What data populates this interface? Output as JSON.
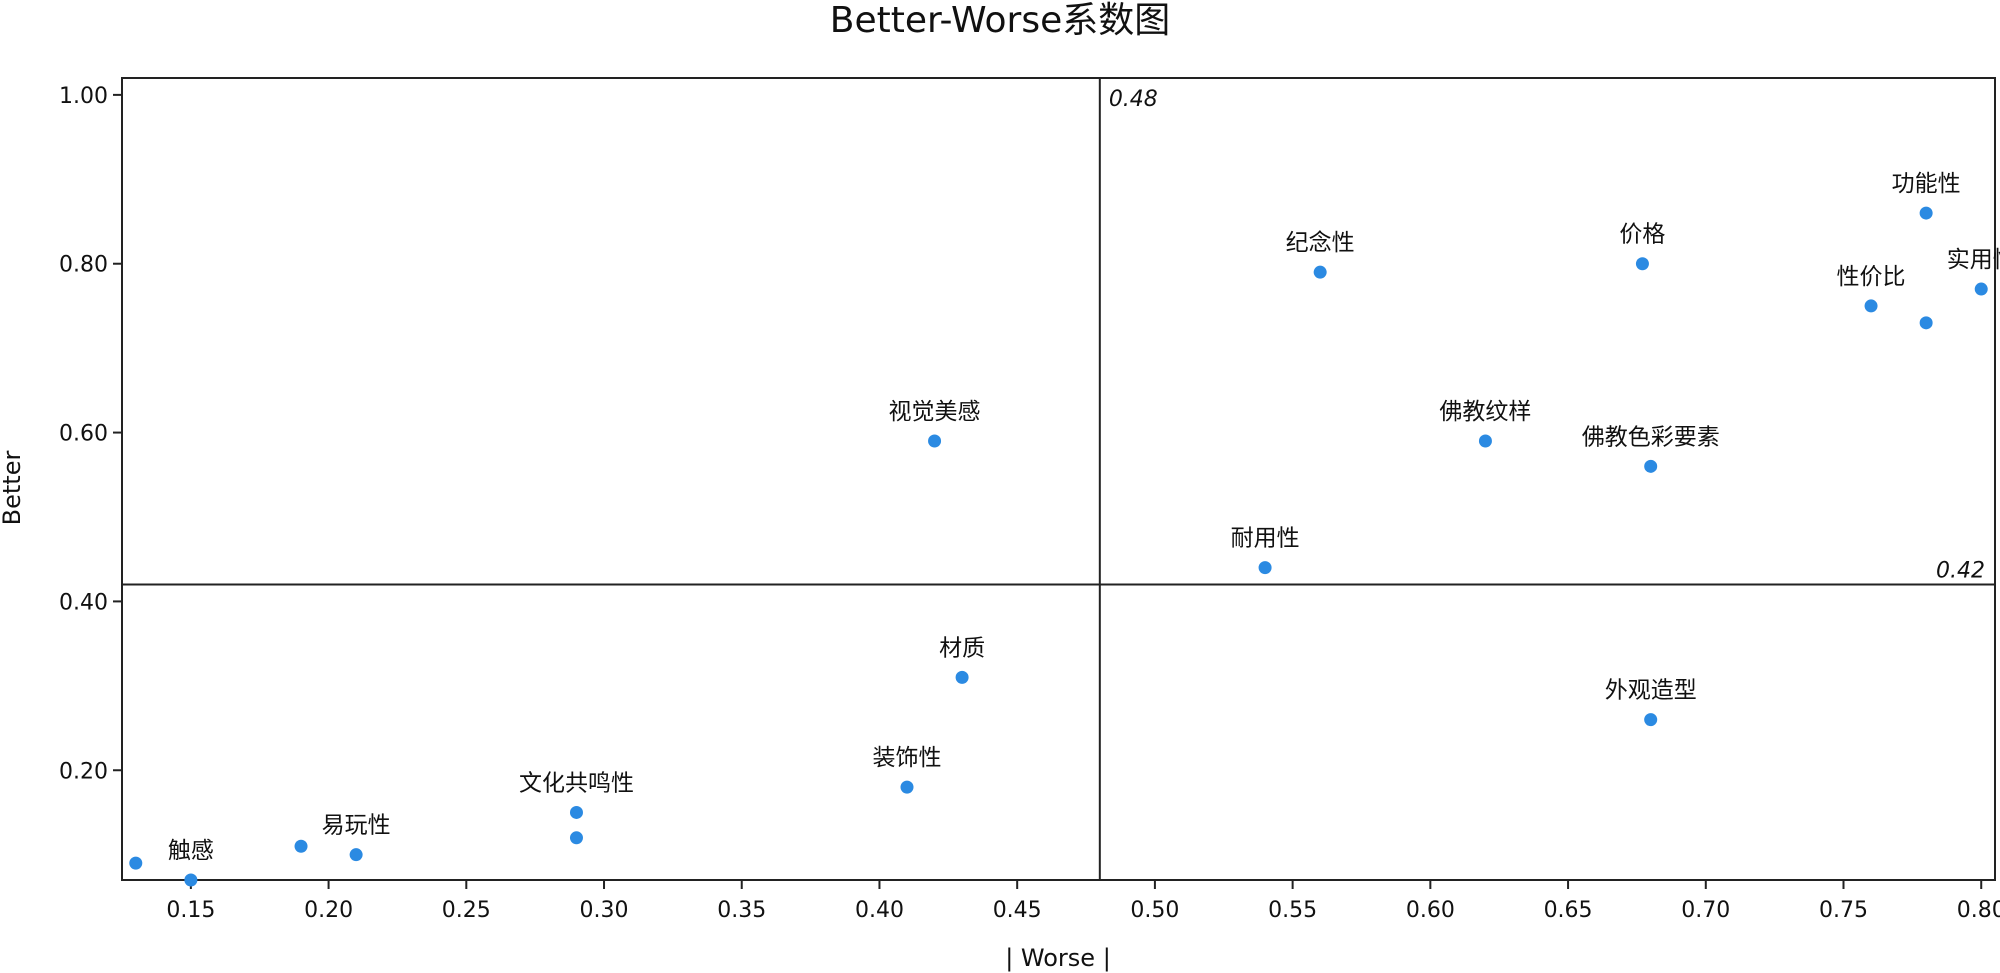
{
  "chart_data": {
    "type": "scatter",
    "title": "Better-Worse系数图",
    "xlabel": "| Worse |",
    "ylabel": "Better",
    "xlim": [
      0.125,
      0.805
    ],
    "ylim": [
      0.07,
      1.02
    ],
    "x_ticks": [
      0.15,
      0.2,
      0.25,
      0.3,
      0.35,
      0.4,
      0.45,
      0.5,
      0.55,
      0.6,
      0.65,
      0.7,
      0.75,
      0.8
    ],
    "x_tick_labels": [
      "0.15",
      "0.20",
      "0.25",
      "0.30",
      "0.35",
      "0.40",
      "0.45",
      "0.50",
      "0.55",
      "0.60",
      "0.65",
      "0.70",
      "0.75",
      "0.80"
    ],
    "y_ticks": [
      0.2,
      0.4,
      0.6,
      0.8,
      1.0
    ],
    "y_tick_labels": [
      "0.20",
      "0.40",
      "0.60",
      "0.80",
      "1.00"
    ],
    "reference_lines": {
      "x": 0.48,
      "x_label": "0.48",
      "y": 0.42,
      "y_label": "0.42"
    },
    "grid": false,
    "point_color": "#2b8ae2",
    "points": [
      {
        "x": 0.13,
        "y": 0.09,
        "label": ""
      },
      {
        "x": 0.15,
        "y": 0.07,
        "label": "触感"
      },
      {
        "x": 0.19,
        "y": 0.11,
        "label": ""
      },
      {
        "x": 0.21,
        "y": 0.1,
        "label": "易玩性"
      },
      {
        "x": 0.29,
        "y": 0.15,
        "label": "文化共鸣性"
      },
      {
        "x": 0.29,
        "y": 0.12,
        "label": ""
      },
      {
        "x": 0.41,
        "y": 0.18,
        "label": "装饰性"
      },
      {
        "x": 0.43,
        "y": 0.31,
        "label": "材质"
      },
      {
        "x": 0.42,
        "y": 0.59,
        "label": "视觉美感"
      },
      {
        "x": 0.54,
        "y": 0.44,
        "label": "耐用性"
      },
      {
        "x": 0.56,
        "y": 0.79,
        "label": "纪念性"
      },
      {
        "x": 0.62,
        "y": 0.59,
        "label": "佛教纹样"
      },
      {
        "x": 0.677,
        "y": 0.8,
        "label": "价格"
      },
      {
        "x": 0.68,
        "y": 0.56,
        "label": "佛教色彩要素"
      },
      {
        "x": 0.68,
        "y": 0.26,
        "label": "外观造型"
      },
      {
        "x": 0.76,
        "y": 0.75,
        "label": "性价比"
      },
      {
        "x": 0.78,
        "y": 0.86,
        "label": "功能性"
      },
      {
        "x": 0.78,
        "y": 0.73,
        "label": ""
      },
      {
        "x": 0.8,
        "y": 0.77,
        "label": "实用性"
      }
    ]
  }
}
